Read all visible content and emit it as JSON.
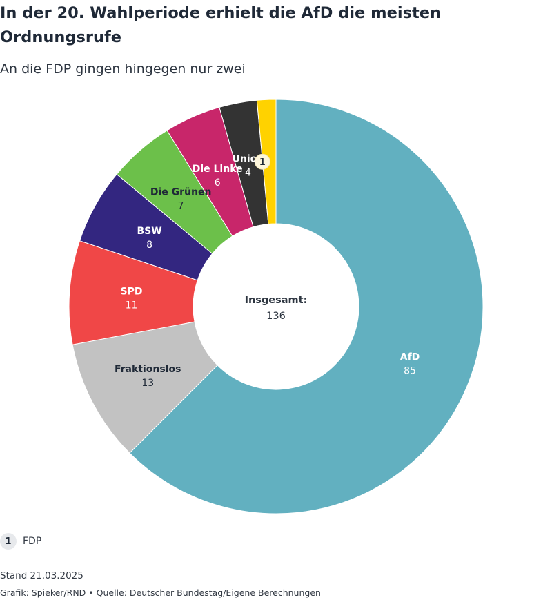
{
  "title": "In der 20. Wahlperiode erhielt die AfD die meisten Ordnungsrufe",
  "subtitle": "An die FDP gingen hingegen nur zwei",
  "chart_data": {
    "type": "pie",
    "subtype": "donut",
    "center_label": "Insgesamt:",
    "center_value": "136",
    "slices": [
      {
        "label": "AfD",
        "value": 85,
        "value_label": "85",
        "color": "#62b0c0",
        "text_color": "#ffffff"
      },
      {
        "label": "Fraktionslos",
        "value": 13,
        "value_label": "13",
        "color": "#c2c2c2",
        "text_color": "#1f2937"
      },
      {
        "label": "SPD",
        "value": 11,
        "value_label": "11",
        "color": "#f04747",
        "text_color": "#ffffff"
      },
      {
        "label": "BSW",
        "value": 8,
        "value_label": "8",
        "color": "#332680",
        "text_color": "#ffffff"
      },
      {
        "label": "Die Grünen",
        "value": 7,
        "value_label": "7",
        "color": "#6cc04a",
        "text_color": "#1f2937"
      },
      {
        "label": "Die Linke",
        "value": 6,
        "value_label": "6",
        "color": "#c8266a",
        "text_color": "#ffffff"
      },
      {
        "label": "Union",
        "value": 4,
        "value_label": "4",
        "color": "#333333",
        "text_color": "#ffffff"
      },
      {
        "label": "",
        "value": 2,
        "value_label": "",
        "color": "#ffd200",
        "text_color": "#1f2937",
        "footnote_marker": "1"
      }
    ]
  },
  "footnote": {
    "marker": "1",
    "text": "FDP"
  },
  "meta": {
    "date": "Stand 21.03.2025",
    "source": "Grafik: Spieker/RND • Quelle: Deutscher Bundestag/Eigene Berechnungen"
  }
}
